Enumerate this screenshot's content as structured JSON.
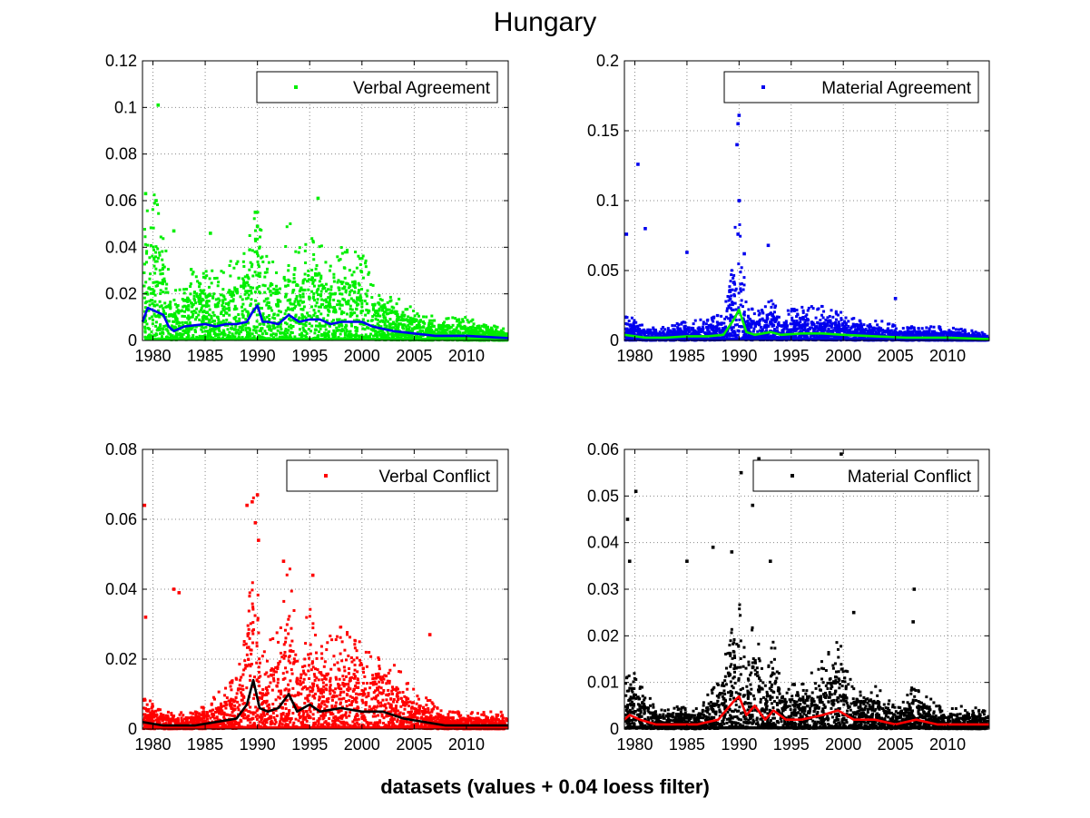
{
  "figure": {
    "title": "Hungary",
    "xlabel": "datasets (values + 0.04 loess filter)"
  },
  "chart_data": [
    {
      "type": "scatter",
      "legend": "Verbal Agreement",
      "legend_position": "top-right",
      "grid": true,
      "xlim": [
        1979,
        2014
      ],
      "ylim": [
        0,
        0.12
      ],
      "xticks": [
        "1980",
        "1985",
        "1990",
        "1995",
        "2000",
        "2005",
        "2010"
      ],
      "yticks": [
        "0",
        "0.02",
        "0.04",
        "0.06",
        "0.08",
        "0.1",
        "0.12"
      ],
      "point_color": "#00ee00",
      "line_color": "#0000ee",
      "smooth": [
        [
          1979,
          0.008
        ],
        [
          1979.5,
          0.014
        ],
        [
          1980.5,
          0.012
        ],
        [
          1981,
          0.011
        ],
        [
          1981.5,
          0.006
        ],
        [
          1982,
          0.004
        ],
        [
          1983,
          0.006
        ],
        [
          1985,
          0.007
        ],
        [
          1986,
          0.006
        ],
        [
          1987,
          0.007
        ],
        [
          1988,
          0.007
        ],
        [
          1989,
          0.008
        ],
        [
          1989.5,
          0.012
        ],
        [
          1990,
          0.015
        ],
        [
          1990.5,
          0.008
        ],
        [
          1991,
          0.008
        ],
        [
          1992,
          0.007
        ],
        [
          1993,
          0.011
        ],
        [
          1994,
          0.008
        ],
        [
          1995,
          0.009
        ],
        [
          1996,
          0.009
        ],
        [
          1997,
          0.007
        ],
        [
          1998,
          0.008
        ],
        [
          2000,
          0.008
        ],
        [
          2001,
          0.006
        ],
        [
          2003,
          0.004
        ],
        [
          2005,
          0.003
        ],
        [
          2007,
          0.002
        ],
        [
          2010,
          0.002
        ],
        [
          2014,
          0.001
        ]
      ],
      "outliers": [
        [
          1979.3,
          0.063
        ],
        [
          1980.3,
          0.06
        ],
        [
          1980.5,
          0.101
        ],
        [
          1989.8,
          0.055
        ],
        [
          1995.8,
          0.061
        ],
        [
          1990,
          0.049
        ],
        [
          1985.5,
          0.046
        ],
        [
          1982,
          0.047
        ]
      ]
    },
    {
      "type": "scatter",
      "legend": "Material Agreement",
      "legend_position": "top-right",
      "grid": true,
      "xlim": [
        1979,
        2014
      ],
      "ylim": [
        0,
        0.2
      ],
      "xticks": [
        "1980",
        "1985",
        "1990",
        "1995",
        "2000",
        "2005",
        "2010"
      ],
      "yticks": [
        "0",
        "0.05",
        "0.1",
        "0.15",
        "0.2"
      ],
      "point_color": "#0000ee",
      "line_color": "#00ee00",
      "smooth": [
        [
          1979,
          0.004
        ],
        [
          1981,
          0.002
        ],
        [
          1983,
          0.002
        ],
        [
          1985,
          0.003
        ],
        [
          1987,
          0.003
        ],
        [
          1988.5,
          0.004
        ],
        [
          1989.5,
          0.015
        ],
        [
          1990,
          0.022
        ],
        [
          1990.7,
          0.006
        ],
        [
          1991.5,
          0.004
        ],
        [
          1993,
          0.006
        ],
        [
          1994,
          0.004
        ],
        [
          1996,
          0.005
        ],
        [
          1998,
          0.005
        ],
        [
          2000,
          0.004
        ],
        [
          2003,
          0.003
        ],
        [
          2006,
          0.002
        ],
        [
          2010,
          0.002
        ],
        [
          2014,
          0.001
        ]
      ],
      "outliers": [
        [
          1979.2,
          0.076
        ],
        [
          1980.3,
          0.126
        ],
        [
          1981,
          0.08
        ],
        [
          1985,
          0.063
        ],
        [
          1990,
          0.161
        ],
        [
          1989.9,
          0.155
        ],
        [
          1989.8,
          0.14
        ],
        [
          1990,
          0.1
        ],
        [
          1989.9,
          0.076
        ],
        [
          1992.8,
          0.068
        ],
        [
          1990.5,
          0.062
        ],
        [
          2005,
          0.03
        ]
      ]
    },
    {
      "type": "scatter",
      "legend": "Verbal Conflict",
      "legend_position": "top-right",
      "grid": true,
      "xlim": [
        1979,
        2014
      ],
      "ylim": [
        0,
        0.08
      ],
      "xticks": [
        "1980",
        "1985",
        "1990",
        "1995",
        "2000",
        "2005",
        "2010"
      ],
      "yticks": [
        "0",
        "0.02",
        "0.04",
        "0.06",
        "0.08"
      ],
      "point_color": "#ff0000",
      "line_color": "#000000",
      "smooth": [
        [
          1979,
          0.002
        ],
        [
          1981,
          0.001
        ],
        [
          1984,
          0.001
        ],
        [
          1986,
          0.002
        ],
        [
          1988,
          0.003
        ],
        [
          1989,
          0.007
        ],
        [
          1989.6,
          0.014
        ],
        [
          1990.2,
          0.006
        ],
        [
          1991,
          0.005
        ],
        [
          1992,
          0.006
        ],
        [
          1993,
          0.01
        ],
        [
          1993.8,
          0.005
        ],
        [
          1995,
          0.007
        ],
        [
          1996,
          0.005
        ],
        [
          1998,
          0.006
        ],
        [
          2000,
          0.005
        ],
        [
          2002,
          0.005
        ],
        [
          2004,
          0.003
        ],
        [
          2006,
          0.002
        ],
        [
          2008,
          0.001
        ],
        [
          2010,
          0.001
        ],
        [
          2014,
          0.001
        ]
      ],
      "outliers": [
        [
          1979.2,
          0.064
        ],
        [
          1979.3,
          0.032
        ],
        [
          1982,
          0.04
        ],
        [
          1982.5,
          0.039
        ],
        [
          1989,
          0.064
        ],
        [
          1989.5,
          0.065
        ],
        [
          1990,
          0.067
        ],
        [
          1989.8,
          0.059
        ],
        [
          1990.1,
          0.054
        ],
        [
          1992.5,
          0.048
        ],
        [
          1995.3,
          0.044
        ],
        [
          2006.5,
          0.027
        ]
      ]
    },
    {
      "type": "scatter",
      "legend": "Material Conflict",
      "legend_position": "top-right",
      "grid": true,
      "xlim": [
        1979,
        2014
      ],
      "ylim": [
        0,
        0.06
      ],
      "xticks": [
        "1980",
        "1985",
        "1990",
        "1995",
        "2000",
        "2005",
        "2010"
      ],
      "yticks": [
        "0",
        "0.01",
        "0.02",
        "0.03",
        "0.04",
        "0.05",
        "0.06"
      ],
      "point_color": "#000000",
      "line_color": "#ff0000",
      "smooth": [
        [
          1979,
          0.002
        ],
        [
          1979.5,
          0.003
        ],
        [
          1980.5,
          0.002
        ],
        [
          1982,
          0.001
        ],
        [
          1984,
          0.001
        ],
        [
          1986,
          0.001
        ],
        [
          1988,
          0.002
        ],
        [
          1989.5,
          0.006
        ],
        [
          1990,
          0.007
        ],
        [
          1990.7,
          0.003
        ],
        [
          1991.5,
          0.005
        ],
        [
          1992.5,
          0.002
        ],
        [
          1993.3,
          0.004
        ],
        [
          1994.5,
          0.002
        ],
        [
          1996,
          0.002
        ],
        [
          1998,
          0.003
        ],
        [
          1999.5,
          0.004
        ],
        [
          2001,
          0.002
        ],
        [
          2003,
          0.002
        ],
        [
          2005,
          0.001
        ],
        [
          2007,
          0.002
        ],
        [
          2009,
          0.001
        ],
        [
          2014,
          0.001
        ]
      ],
      "outliers": [
        [
          1979.3,
          0.045
        ],
        [
          1979.5,
          0.036
        ],
        [
          1980.1,
          0.051
        ],
        [
          1985,
          0.036
        ],
        [
          1987.5,
          0.039
        ],
        [
          1989.3,
          0.038
        ],
        [
          1990.2,
          0.055
        ],
        [
          1991.3,
          0.048
        ],
        [
          1991.9,
          0.058
        ],
        [
          1993,
          0.036
        ],
        [
          1999.8,
          0.059
        ],
        [
          2001,
          0.025
        ],
        [
          2006.8,
          0.03
        ],
        [
          2006.7,
          0.023
        ]
      ]
    }
  ]
}
